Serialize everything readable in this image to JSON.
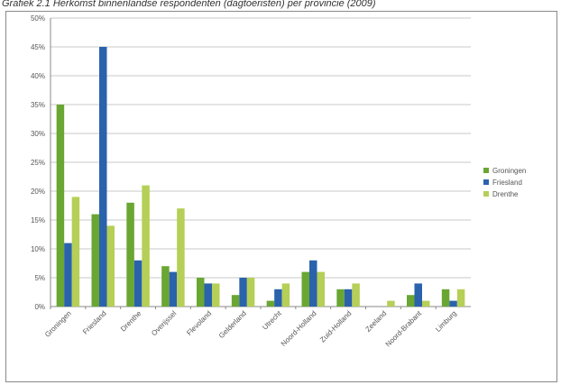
{
  "caption": "Grafiek 2.1 Herkomst binnenlandse respondenten (dagtoeristen) per provincie (2009)",
  "chart_data": {
    "type": "bar",
    "categories": [
      "Groningen",
      "Friesland",
      "Drenthe",
      "Overijssel",
      "Flevoland",
      "Gelderland",
      "Utrecht",
      "Noord-Holland",
      "Zuid-Holland",
      "Zeeland",
      "Noord-Brabant",
      "Limburg"
    ],
    "series": [
      {
        "name": "Groningen",
        "color": "#6aa632",
        "values": [
          35,
          16,
          18,
          7,
          5,
          2,
          1,
          6,
          3,
          0,
          2,
          3
        ]
      },
      {
        "name": "Friesland",
        "color": "#2a62ac",
        "values": [
          11,
          45,
          8,
          6,
          4,
          5,
          3,
          8,
          3,
          0,
          4,
          1
        ]
      },
      {
        "name": "Drenthe",
        "color": "#b5cf57",
        "values": [
          19,
          14,
          21,
          17,
          4,
          5,
          4,
          6,
          4,
          1,
          1,
          3
        ]
      }
    ],
    "ylim": [
      0,
      50
    ],
    "yticks": [
      "0%",
      "5%",
      "10%",
      "15%",
      "20%",
      "25%",
      "30%",
      "35%",
      "40%",
      "45%",
      "50%"
    ],
    "grid": true,
    "legend_position": "right"
  }
}
